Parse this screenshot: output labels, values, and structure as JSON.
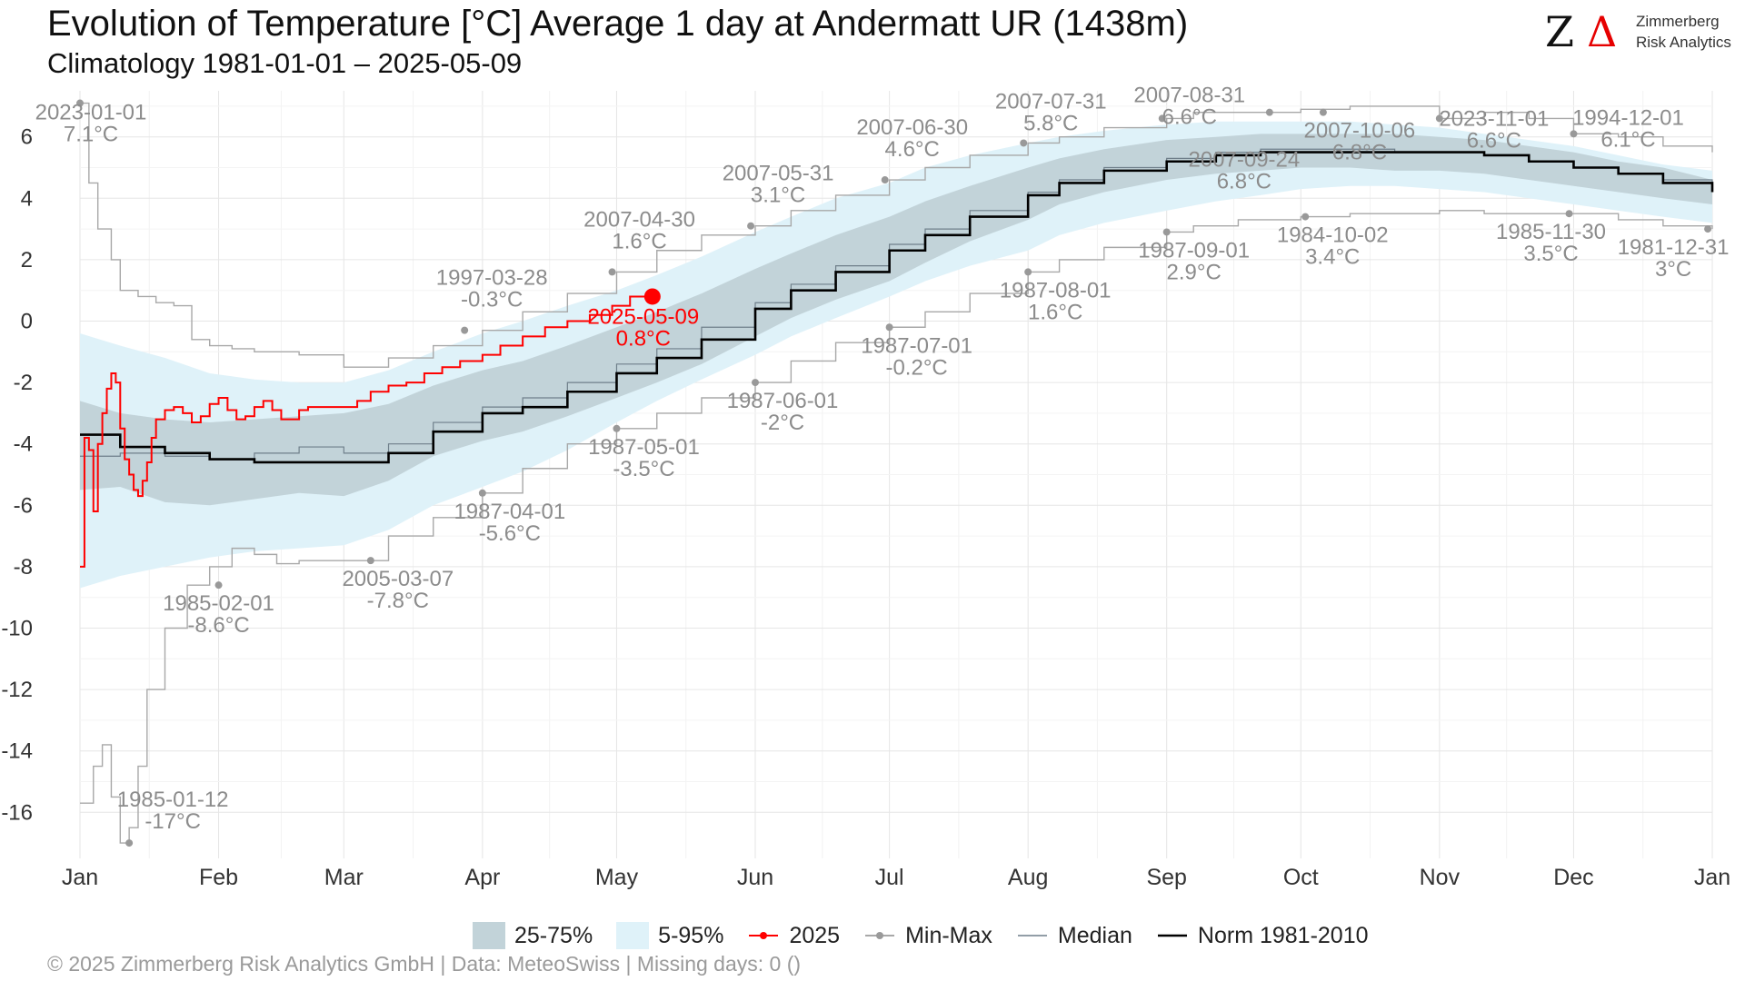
{
  "title": "Evolution of Temperature [°C] Average 1 day at Andermatt  UR (1438m)",
  "subtitle": "Climatology 1981-01-01 – 2025-05-09",
  "logo": {
    "name_line1": "Zimmerberg",
    "name_line2": "Risk Analytics",
    "mark": "Z",
    "delta": "Δ"
  },
  "copyright": "©  2025 Zimmerberg Risk Analytics GmbH | Data: MeteoSwiss | Missing days: 0 ()",
  "colors": {
    "current": "#ff0000",
    "norm": "#000000",
    "median": "#6f7f8a",
    "minmax": "#a8a8a8",
    "band_25_75": "#c2d3d9",
    "band_5_95": "#dff2f9",
    "annotation": "#8c8c8c",
    "grid": "#e6e6e6"
  },
  "legend": [
    {
      "key": "band-25-75",
      "label": "25-75%"
    },
    {
      "key": "band-5-95",
      "label": "5-95%"
    },
    {
      "key": "series-2025",
      "label": "2025"
    },
    {
      "key": "series-minmax",
      "label": "Min-Max"
    },
    {
      "key": "series-median",
      "label": "Median"
    },
    {
      "key": "series-norm",
      "label": "Norm 1981-2010"
    }
  ],
  "chart_data": {
    "type": "line",
    "x_unit": "day of year",
    "xlim": [
      1,
      366
    ],
    "ylim": [
      -17.5,
      7.5
    ],
    "y_ticks": [
      6,
      4,
      2,
      0,
      -2,
      -4,
      -6,
      -8,
      -10,
      -12,
      -14,
      -16
    ],
    "x_ticks": [
      {
        "label": "Jan",
        "day": 1
      },
      {
        "label": "Feb",
        "day": 32
      },
      {
        "label": "Mar",
        "day": 60
      },
      {
        "label": "Apr",
        "day": 91
      },
      {
        "label": "May",
        "day": 121
      },
      {
        "label": "Jun",
        "day": 152
      },
      {
        "label": "Jul",
        "day": 182
      },
      {
        "label": "Aug",
        "day": 213
      },
      {
        "label": "Sep",
        "day": 244
      },
      {
        "label": "Oct",
        "day": 274
      },
      {
        "label": "Nov",
        "day": 305
      },
      {
        "label": "Dec",
        "day": 335
      },
      {
        "label": "Jan",
        "day": 366
      }
    ],
    "grid": true,
    "legend_position": "bottom",
    "series": [
      {
        "name": "Norm 1981-2010",
        "x": [
          1,
          10,
          20,
          30,
          40,
          50,
          60,
          70,
          80,
          91,
          100,
          110,
          121,
          130,
          140,
          152,
          160,
          170,
          182,
          190,
          200,
          213,
          220,
          230,
          244,
          255,
          265,
          274,
          285,
          295,
          305,
          315,
          325,
          335,
          345,
          355,
          366
        ],
        "y": [
          -3.7,
          -4.1,
          -4.3,
          -4.5,
          -4.6,
          -4.6,
          -4.6,
          -4.3,
          -3.6,
          -3.0,
          -2.8,
          -2.3,
          -1.7,
          -1.2,
          -0.6,
          0.4,
          1.0,
          1.6,
          2.3,
          2.8,
          3.4,
          4.1,
          4.5,
          4.9,
          5.2,
          5.4,
          5.5,
          5.5,
          5.5,
          5.5,
          5.5,
          5.4,
          5.2,
          5.0,
          4.8,
          4.5,
          4.2
        ]
      },
      {
        "name": "Median",
        "x": [
          1,
          10,
          20,
          30,
          40,
          50,
          60,
          70,
          80,
          91,
          100,
          110,
          121,
          130,
          140,
          152,
          160,
          170,
          182,
          190,
          200,
          213,
          220,
          230,
          244,
          255,
          265,
          274,
          285,
          295,
          305,
          315,
          325,
          335,
          345,
          355,
          366
        ],
        "y": [
          -4.4,
          -4.3,
          -4.4,
          -4.5,
          -4.3,
          -4.1,
          -4.3,
          -4.0,
          -3.3,
          -2.8,
          -2.5,
          -2.0,
          -1.4,
          -0.9,
          -0.2,
          0.6,
          1.2,
          1.8,
          2.5,
          3.0,
          3.6,
          4.2,
          4.6,
          5.0,
          5.3,
          5.5,
          5.6,
          5.6,
          5.6,
          5.5,
          5.5,
          5.4,
          5.2,
          5.0,
          4.8,
          4.6,
          4.3
        ]
      },
      {
        "name": "2025",
        "x": [
          1,
          2,
          3,
          4,
          5,
          6,
          7,
          8,
          9,
          10,
          11,
          12,
          13,
          14,
          15,
          16,
          17,
          18,
          20,
          22,
          24,
          26,
          28,
          30,
          32,
          34,
          36,
          38,
          40,
          42,
          44,
          46,
          48,
          50,
          52,
          54,
          56,
          58,
          60,
          63,
          66,
          70,
          74,
          78,
          82,
          86,
          91,
          95,
          100,
          105,
          110,
          115,
          120,
          124,
          127,
          129
        ],
        "y": [
          -8.0,
          -3.8,
          -4.2,
          -6.2,
          -4.0,
          -3.0,
          -2.2,
          -1.7,
          -2.0,
          -3.5,
          -4.5,
          -5.0,
          -5.5,
          -5.7,
          -5.2,
          -4.6,
          -3.8,
          -3.2,
          -2.9,
          -2.8,
          -3.0,
          -3.3,
          -3.1,
          -2.7,
          -2.5,
          -2.9,
          -3.2,
          -3.1,
          -2.8,
          -2.6,
          -2.9,
          -3.2,
          -3.2,
          -2.9,
          -2.8,
          -2.8,
          -2.8,
          -2.8,
          -2.8,
          -2.6,
          -2.3,
          -2.1,
          -2.0,
          -1.7,
          -1.5,
          -1.3,
          -1.1,
          -0.8,
          -0.5,
          -0.2,
          0.0,
          0.2,
          0.5,
          0.8,
          0.8,
          0.8
        ]
      },
      {
        "name": "Max",
        "x": [
          1,
          3,
          5,
          8,
          10,
          14,
          18,
          22,
          26,
          30,
          35,
          40,
          50,
          60,
          70,
          80,
          91,
          100,
          110,
          121,
          130,
          140,
          152,
          160,
          170,
          182,
          190,
          200,
          213,
          220,
          230,
          244,
          250,
          260,
          274,
          285,
          295,
          305,
          315,
          325,
          335,
          345,
          355,
          366
        ],
        "y": [
          7.1,
          4.5,
          3.0,
          2.0,
          1.0,
          0.8,
          0.6,
          0.5,
          -0.6,
          -0.8,
          -0.9,
          -1.0,
          -1.1,
          -1.5,
          -1.2,
          -0.8,
          -0.3,
          0.3,
          0.9,
          1.6,
          2.3,
          2.8,
          3.1,
          3.6,
          4.1,
          4.6,
          5.0,
          5.4,
          5.8,
          6.0,
          6.3,
          6.6,
          6.8,
          6.8,
          6.9,
          7.0,
          7.0,
          6.6,
          6.8,
          6.6,
          6.1,
          6.0,
          5.7,
          5.5
        ]
      },
      {
        "name": "Min",
        "x": [
          1,
          4,
          6,
          8,
          10,
          12,
          14,
          16,
          20,
          25,
          30,
          35,
          40,
          45,
          50,
          55,
          60,
          70,
          80,
          91,
          100,
          110,
          121,
          130,
          140,
          152,
          160,
          170,
          182,
          190,
          200,
          213,
          220,
          230,
          244,
          250,
          260,
          274,
          285,
          295,
          305,
          315,
          325,
          335,
          345,
          355,
          366
        ],
        "y": [
          -15.7,
          -14.5,
          -13.8,
          -15.5,
          -17.0,
          -16.5,
          -14.5,
          -12.0,
          -10.0,
          -8.6,
          -8.0,
          -7.4,
          -7.6,
          -7.9,
          -7.8,
          -7.8,
          -7.8,
          -7.0,
          -6.4,
          -5.6,
          -4.8,
          -4.0,
          -3.5,
          -3.0,
          -2.5,
          -2.0,
          -1.3,
          -0.7,
          -0.2,
          0.3,
          0.9,
          1.6,
          2.0,
          2.4,
          2.9,
          3.1,
          3.3,
          3.4,
          3.5,
          3.5,
          3.6,
          3.5,
          3.5,
          3.5,
          3.3,
          3.1,
          3.0
        ]
      },
      {
        "name": "25-75%",
        "x": [
          1,
          10,
          20,
          30,
          40,
          50,
          60,
          70,
          80,
          91,
          100,
          110,
          121,
          130,
          140,
          152,
          160,
          170,
          182,
          190,
          200,
          213,
          220,
          230,
          244,
          255,
          265,
          274,
          285,
          295,
          305,
          315,
          325,
          335,
          345,
          355,
          366
        ],
        "low": [
          -5.5,
          -5.4,
          -5.9,
          -6.0,
          -5.8,
          -5.6,
          -5.7,
          -5.2,
          -4.4,
          -3.9,
          -3.6,
          -3.1,
          -2.5,
          -2.0,
          -1.4,
          -0.5,
          0.1,
          0.7,
          1.3,
          1.9,
          2.6,
          3.3,
          3.8,
          4.2,
          4.6,
          4.8,
          4.9,
          5.0,
          5.0,
          4.9,
          4.9,
          4.8,
          4.6,
          4.4,
          4.2,
          4.0,
          3.8
        ],
        "high": [
          -2.6,
          -3.0,
          -3.2,
          -3.3,
          -3.2,
          -3.1,
          -3.0,
          -2.7,
          -2.1,
          -1.6,
          -1.3,
          -0.8,
          -0.2,
          0.3,
          0.9,
          1.7,
          2.2,
          2.8,
          3.4,
          3.9,
          4.4,
          5.0,
          5.3,
          5.6,
          5.9,
          6.0,
          6.1,
          6.1,
          6.1,
          6.1,
          6.0,
          5.9,
          5.7,
          5.5,
          5.2,
          5.0,
          4.6
        ]
      },
      {
        "name": "5-95%",
        "x": [
          1,
          10,
          20,
          30,
          40,
          50,
          60,
          70,
          80,
          91,
          100,
          110,
          121,
          130,
          140,
          152,
          160,
          170,
          182,
          190,
          200,
          213,
          220,
          230,
          244,
          255,
          265,
          274,
          285,
          295,
          305,
          315,
          325,
          335,
          345,
          355,
          366
        ],
        "low": [
          -8.7,
          -8.3,
          -8.0,
          -7.7,
          -7.5,
          -7.4,
          -7.3,
          -6.8,
          -6.0,
          -5.4,
          -4.9,
          -4.2,
          -3.3,
          -2.6,
          -1.9,
          -1.1,
          -0.5,
          0.1,
          0.8,
          1.3,
          1.8,
          2.3,
          2.8,
          3.2,
          3.6,
          3.9,
          4.1,
          4.3,
          4.4,
          4.4,
          4.3,
          4.2,
          4.0,
          3.8,
          3.6,
          3.4,
          3.2
        ],
        "high": [
          -0.4,
          -0.8,
          -1.2,
          -1.7,
          -1.9,
          -2.0,
          -2.0,
          -1.6,
          -1.0,
          -0.4,
          0.0,
          0.5,
          1.0,
          1.5,
          2.1,
          2.9,
          3.4,
          4.0,
          4.5,
          5.0,
          5.4,
          5.8,
          6.0,
          6.2,
          6.4,
          6.5,
          6.5,
          6.5,
          6.5,
          6.4,
          6.3,
          6.1,
          5.9,
          5.7,
          5.4,
          5.1,
          4.9
        ]
      }
    ],
    "current_point": {
      "day": 129,
      "value": 0.8,
      "date": "2025-05-09",
      "label": "0.8°C"
    },
    "annotations": [
      {
        "day": 1,
        "value": 7.1,
        "date": "2023-01-01",
        "text": "7.1°C",
        "dx": 12,
        "dy": 18
      },
      {
        "day": 12,
        "value": -17.0,
        "date": "1985-01-12",
        "text": "-17°C",
        "dx": 48,
        "dy": -40
      },
      {
        "day": 32,
        "value": -8.6,
        "date": "1985-02-01",
        "text": "-8.6°C",
        "dx": 0,
        "dy": 28
      },
      {
        "day": 66,
        "value": -7.8,
        "date": "2005-03-07",
        "text": "-7.8°C",
        "dx": 30,
        "dy": 28
      },
      {
        "day": 87,
        "value": -0.3,
        "date": "1997-03-28",
        "text": "-0.3°C",
        "dx": 30,
        "dy": -50
      },
      {
        "day": 91,
        "value": -5.6,
        "date": "1987-04-01",
        "text": "-5.6°C",
        "dx": 30,
        "dy": 28
      },
      {
        "day": 120,
        "value": 1.6,
        "date": "2007-04-30",
        "text": "1.6°C",
        "dx": 30,
        "dy": -50
      },
      {
        "day": 121,
        "value": -3.5,
        "date": "1987-05-01",
        "text": "-3.5°C",
        "dx": 30,
        "dy": 28
      },
      {
        "day": 151,
        "value": 3.1,
        "date": "2007-05-31",
        "text": "3.1°C",
        "dx": 30,
        "dy": -50
      },
      {
        "day": 152,
        "value": -2.0,
        "date": "1987-06-01",
        "text": "-2°C",
        "dx": 30,
        "dy": 28
      },
      {
        "day": 181,
        "value": 4.6,
        "date": "2007-06-30",
        "text": "4.6°C",
        "dx": 30,
        "dy": -50
      },
      {
        "day": 182,
        "value": -0.2,
        "date": "1987-07-01",
        "text": "-0.2°C",
        "dx": 30,
        "dy": 28
      },
      {
        "day": 212,
        "value": 5.8,
        "date": "2007-07-31",
        "text": "5.8°C",
        "dx": 30,
        "dy": -38
      },
      {
        "day": 213,
        "value": 1.6,
        "date": "1987-08-01",
        "text": "1.6°C",
        "dx": 30,
        "dy": 28
      },
      {
        "day": 243,
        "value": 6.6,
        "date": "2007-08-31",
        "text": "6.6°C",
        "dx": 30,
        "dy": -18
      },
      {
        "day": 244,
        "value": 2.9,
        "date": "1987-09-01",
        "text": "2.9°C",
        "dx": 30,
        "dy": 28
      },
      {
        "day": 267,
        "value": 6.8,
        "date": "2007-09-24",
        "text": "6.8°C",
        "dx": -28,
        "dy": 60
      },
      {
        "day": 275,
        "value": 3.4,
        "date": "1984-10-02",
        "text": "3.4°C",
        "dx": 30,
        "dy": 28
      },
      {
        "day": 279,
        "value": 6.8,
        "date": "2007-10-06",
        "text": "6.8°C",
        "dx": 40,
        "dy": 28
      },
      {
        "day": 305,
        "value": 6.6,
        "date": "2023-11-01",
        "text": "6.6°C",
        "dx": 60,
        "dy": 8
      },
      {
        "day": 334,
        "value": 3.5,
        "date": "1985-11-30",
        "text": "3.5°C",
        "dx": -20,
        "dy": 28
      },
      {
        "day": 335,
        "value": 6.1,
        "date": "1994-12-01",
        "text": "6.1°C",
        "dx": 60,
        "dy": -10
      },
      {
        "day": 365,
        "value": 3.0,
        "date": "1981-12-31",
        "text": "3°C",
        "dx": -38,
        "dy": 28
      }
    ]
  }
}
